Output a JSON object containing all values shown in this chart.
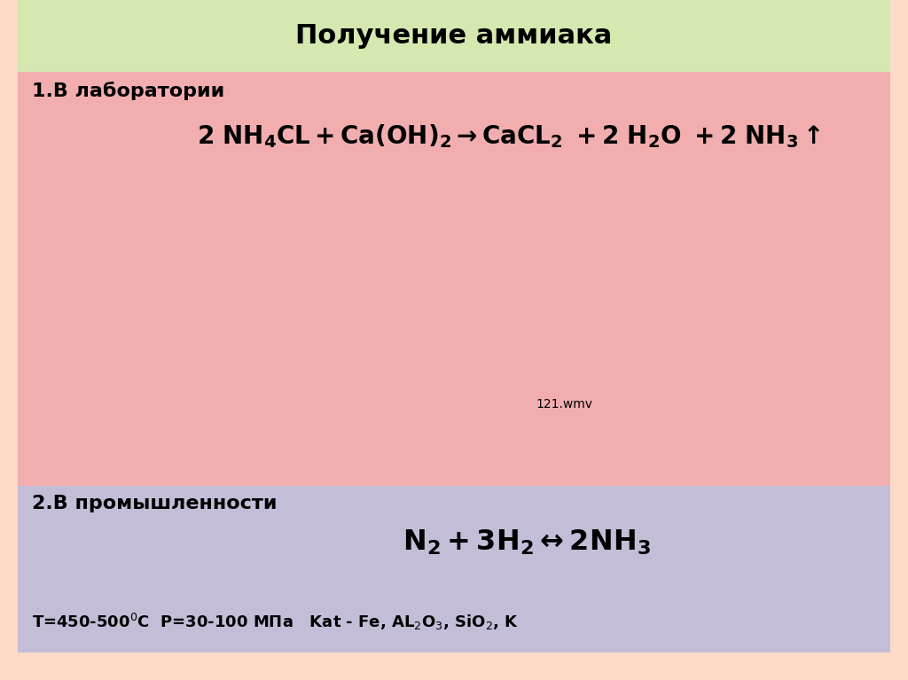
{
  "title": "Получение аммиака",
  "bg_color": "#FDDBC8",
  "title_bg_color": "#D4E8B0",
  "section1_bg_color": "#F2AEAE",
  "section2_bg_color": "#C4BDD8",
  "outer_bg_color": "#FDDBC8",
  "title_fontsize": 22,
  "section_label_fontsize": 16,
  "eq1_fontsize": 20,
  "eq2_fontsize": 22,
  "cond_fontsize": 13,
  "title_text": "Получение аммиака",
  "sec1_label": "1.В лаборатории",
  "sec2_label": "2.В промышленности",
  "sec2_conditions": "T=450-500°C  P=30-100 МПа   Kat - Fe, AL₂O₃, SiO₂, K"
}
